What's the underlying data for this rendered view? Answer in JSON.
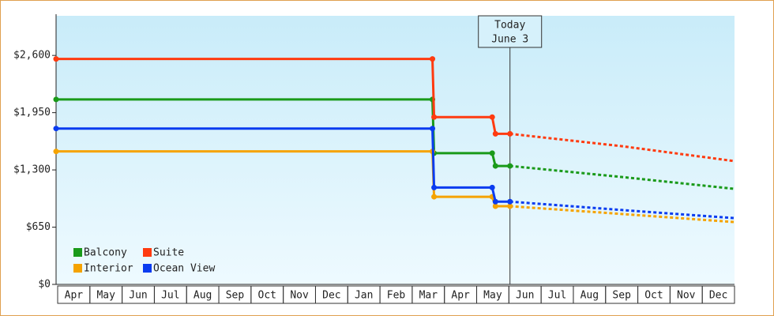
{
  "chart_data": {
    "type": "step-line",
    "categories": [
      "Apr",
      "May",
      "Jun",
      "Jul",
      "Aug",
      "Sep",
      "Oct",
      "Nov",
      "Dec",
      "Jan",
      "Feb",
      "Mar",
      "Apr",
      "May",
      "Jun",
      "Jul",
      "Aug",
      "Sep",
      "Oct",
      "Nov",
      "Dec"
    ],
    "xlim": [
      0,
      21
    ],
    "ylim": [
      0,
      3050
    ],
    "yticks": [
      {
        "value": 0,
        "label": "$0"
      },
      {
        "value": 650,
        "label": "$650"
      },
      {
        "value": 1300,
        "label": "$1,300"
      },
      {
        "value": 1950,
        "label": "$1,950"
      },
      {
        "value": 2600,
        "label": "$2,600"
      }
    ],
    "today": {
      "x": 14.05,
      "label": [
        "Today",
        "June 3"
      ]
    },
    "legend": "lower left",
    "series": [
      {
        "name": "Balcony",
        "color": "#1a9a1a",
        "x": [
          0,
          11.65,
          11.7,
          13.5,
          13.6,
          14.05
        ],
        "values": [
          2100,
          2100,
          1490,
          1490,
          1345,
          1345
        ],
        "forecast_x": [
          14.05,
          17.5,
          21
        ],
        "forecast_values": [
          1345,
          1220,
          1085
        ]
      },
      {
        "name": "Suite",
        "color": "#ff3b10",
        "x": [
          0,
          11.65,
          11.7,
          13.5,
          13.6,
          14.05
        ],
        "values": [
          2560,
          2560,
          1900,
          1900,
          1710,
          1710
        ],
        "forecast_x": [
          14.05,
          17.5,
          21
        ],
        "forecast_values": [
          1710,
          1570,
          1400
        ]
      },
      {
        "name": "Interior",
        "color": "#f5a300",
        "x": [
          0,
          11.65,
          11.7,
          13.5,
          13.6,
          14.05
        ],
        "values": [
          1510,
          1510,
          995,
          995,
          888,
          888
        ],
        "forecast_x": [
          14.05,
          17.5,
          21
        ],
        "forecast_values": [
          888,
          800,
          708
        ]
      },
      {
        "name": "Ocean View",
        "color": "#0a3cf0",
        "x": [
          0,
          11.65,
          11.7,
          13.5,
          13.6,
          14.05
        ],
        "values": [
          1770,
          1770,
          1100,
          1100,
          940,
          940
        ],
        "forecast_x": [
          14.05,
          17.5,
          21
        ],
        "forecast_values": [
          940,
          845,
          753
        ]
      }
    ]
  }
}
